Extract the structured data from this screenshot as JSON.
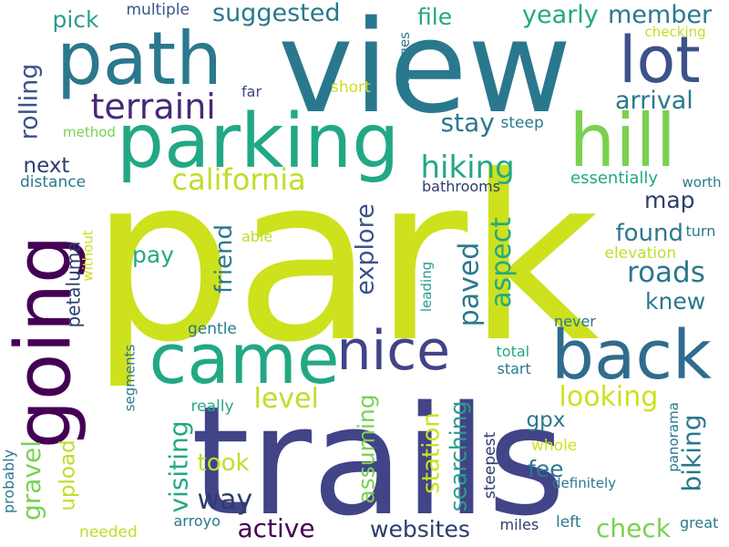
{
  "words": [
    {
      "id": "park",
      "text": "park",
      "color": "#cde11d"
    },
    {
      "id": "trails",
      "text": "trails",
      "color": "#414487"
    },
    {
      "id": "view",
      "text": "view",
      "color": "#2a788e"
    },
    {
      "id": "parking",
      "text": "parking",
      "color": "#22a884"
    },
    {
      "id": "path",
      "text": "path",
      "color": "#2a788e"
    },
    {
      "id": "came",
      "text": "came",
      "color": "#22a884"
    },
    {
      "id": "back",
      "text": "back",
      "color": "#2f6c8e"
    },
    {
      "id": "going",
      "text": "going",
      "color": "#440154"
    },
    {
      "id": "hill",
      "text": "hill",
      "color": "#7ad151"
    },
    {
      "id": "lot",
      "text": "lot",
      "color": "#3b528b"
    },
    {
      "id": "nice",
      "text": "nice",
      "color": "#414487"
    },
    {
      "id": "terraini",
      "text": "terraini",
      "color": "#482878"
    },
    {
      "id": "california",
      "text": "california",
      "color": "#bddf26"
    },
    {
      "id": "hiking",
      "text": "hiking",
      "color": "#22a884"
    },
    {
      "id": "suggested",
      "text": "suggested",
      "color": "#2a788e"
    },
    {
      "id": "yearly",
      "text": "yearly",
      "color": "#22a884"
    },
    {
      "id": "member",
      "text": "member",
      "color": "#2a788e"
    },
    {
      "id": "pick",
      "text": "pick",
      "color": "#2a9d8f"
    },
    {
      "id": "multiple",
      "text": "multiple",
      "color": "#3b528b"
    },
    {
      "id": "file",
      "text": "file",
      "color": "#22a884"
    },
    {
      "id": "checking",
      "text": "checking",
      "color": "#bddf26"
    },
    {
      "id": "arrival",
      "text": "arrival",
      "color": "#2a788e"
    },
    {
      "id": "rolling",
      "text": "rolling",
      "color": "#3b528b"
    },
    {
      "id": "stay",
      "text": "stay",
      "color": "#2a788e"
    },
    {
      "id": "steep",
      "text": "steep",
      "color": "#2a788e"
    },
    {
      "id": "method",
      "text": "method",
      "color": "#7ad151"
    },
    {
      "id": "next",
      "text": "next",
      "color": "#2c3e6e"
    },
    {
      "id": "distance",
      "text": "distance",
      "color": "#2a788e"
    },
    {
      "id": "far",
      "text": "far",
      "color": "#414487"
    },
    {
      "id": "short",
      "text": "short",
      "color": "#cde11d"
    },
    {
      "id": "changes",
      "text": "changes",
      "color": "#2a788e"
    },
    {
      "id": "essentially",
      "text": "essentially",
      "color": "#22a884"
    },
    {
      "id": "worth",
      "text": "worth",
      "color": "#2a788e"
    },
    {
      "id": "bathrooms",
      "text": "bathrooms",
      "color": "#2c3e6e"
    },
    {
      "id": "explore",
      "text": "explore",
      "color": "#3b528b"
    },
    {
      "id": "map",
      "text": "map",
      "color": "#2c3e6e"
    },
    {
      "id": "found",
      "text": "found",
      "color": "#2a788e"
    },
    {
      "id": "roads",
      "text": "roads",
      "color": "#2a788e"
    },
    {
      "id": "knew",
      "text": "knew",
      "color": "#2a788e"
    },
    {
      "id": "friend",
      "text": "friend",
      "color": "#2a788e"
    },
    {
      "id": "pay",
      "text": "pay",
      "color": "#22a884"
    },
    {
      "id": "paved",
      "text": "paved",
      "color": "#2a788e"
    },
    {
      "id": "aspect",
      "text": "aspect",
      "color": "#22a884"
    },
    {
      "id": "elevation",
      "text": "elevation",
      "color": "#bddf26"
    },
    {
      "id": "turn",
      "text": "turn",
      "color": "#2a788e"
    },
    {
      "id": "petaluma",
      "text": "petaluma",
      "color": "#2c3e6e"
    },
    {
      "id": "without",
      "text": "without",
      "color": "#cde11d"
    },
    {
      "id": "able",
      "text": "able",
      "color": "#bddf26"
    },
    {
      "id": "leading",
      "text": "leading",
      "color": "#2a9d8f"
    },
    {
      "id": "gentle",
      "text": "gentle",
      "color": "#2a788e"
    },
    {
      "id": "never",
      "text": "never",
      "color": "#2a788e"
    },
    {
      "id": "level",
      "text": "level",
      "color": "#bddf26"
    },
    {
      "id": "looking",
      "text": "looking",
      "color": "#cde11d"
    },
    {
      "id": "total",
      "text": "total",
      "color": "#22a884"
    },
    {
      "id": "start",
      "text": "start",
      "color": "#2a788e"
    },
    {
      "id": "segments",
      "text": "segments",
      "color": "#2a788e"
    },
    {
      "id": "really",
      "text": "really",
      "color": "#22a884"
    },
    {
      "id": "gravel",
      "text": "gravel",
      "color": "#7ad151"
    },
    {
      "id": "upload",
      "text": "upload",
      "color": "#bddf26"
    },
    {
      "id": "visiting",
      "text": "visiting",
      "color": "#22a884"
    },
    {
      "id": "assuming",
      "text": "assuming",
      "color": "#7ad151"
    },
    {
      "id": "station",
      "text": "station",
      "color": "#cde11d"
    },
    {
      "id": "searching",
      "text": "searching",
      "color": "#2a9d8f"
    },
    {
      "id": "gpx",
      "text": "gpx",
      "color": "#2a788e"
    },
    {
      "id": "fee",
      "text": "fee",
      "color": "#2a788e"
    },
    {
      "id": "biking",
      "text": "biking",
      "color": "#2a788e"
    },
    {
      "id": "panorama",
      "text": "panorama",
      "color": "#2a788e"
    },
    {
      "id": "whole",
      "text": "whole",
      "color": "#cde11d"
    },
    {
      "id": "steepest",
      "text": "steepest",
      "color": "#2c3e6e"
    },
    {
      "id": "took",
      "text": "took",
      "color": "#bddf26"
    },
    {
      "id": "way",
      "text": "way",
      "color": "#2c3e6e"
    },
    {
      "id": "definitely",
      "text": "definitely",
      "color": "#2a788e"
    },
    {
      "id": "probably",
      "text": "probably",
      "color": "#2a788e"
    },
    {
      "id": "active",
      "text": "active",
      "color": "#440154"
    },
    {
      "id": "websites",
      "text": "websites",
      "color": "#2c3e6e"
    },
    {
      "id": "needed",
      "text": "needed",
      "color": "#bddf26"
    },
    {
      "id": "arroyo",
      "text": "arroyo",
      "color": "#2a788e"
    },
    {
      "id": "miles",
      "text": "miles",
      "color": "#2c3e6e"
    },
    {
      "id": "left",
      "text": "left",
      "color": "#2a788e"
    },
    {
      "id": "check",
      "text": "check",
      "color": "#7ad151"
    },
    {
      "id": "great",
      "text": "great",
      "color": "#2a788e"
    }
  ]
}
